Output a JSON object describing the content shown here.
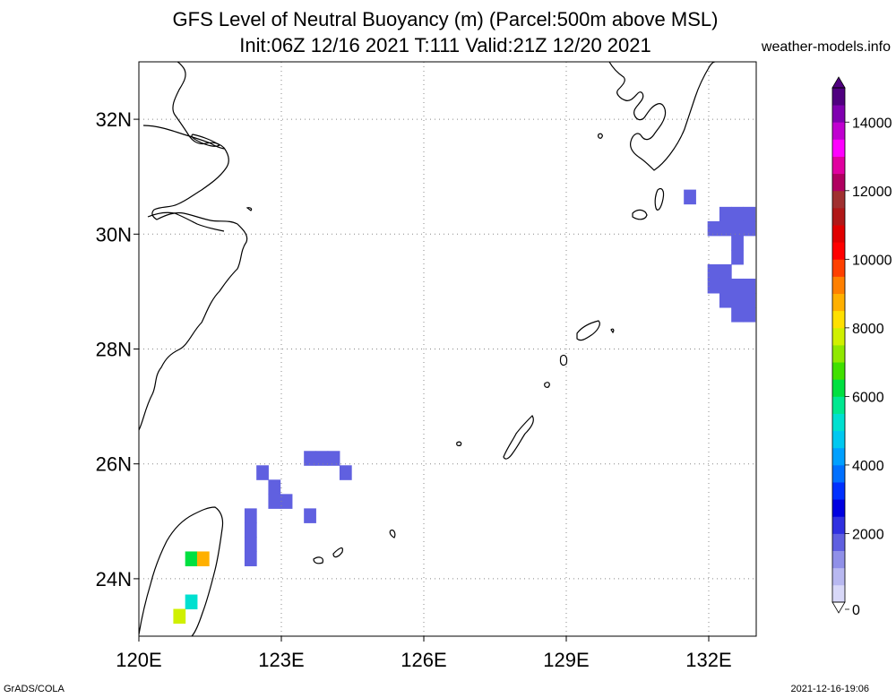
{
  "title": {
    "line1": "GFS Level of Neutral Buoyancy (m) (Parcel:500m above MSL)",
    "line2": "Init:06Z 12/16 2021 T:111 Valid:21Z 12/20 2021"
  },
  "site": "weather-models.info",
  "credits": {
    "left": "GrADS/COLA",
    "right": "2021-12-16-19:06"
  },
  "map": {
    "lon_range": [
      120,
      133
    ],
    "lat_range": [
      23,
      33
    ],
    "lat_ticks": [
      {
        "value": 24,
        "label": "24N"
      },
      {
        "value": 26,
        "label": "26N"
      },
      {
        "value": 28,
        "label": "28N"
      },
      {
        "value": 30,
        "label": "30N"
      },
      {
        "value": 32,
        "label": "32N"
      }
    ],
    "lon_ticks": [
      {
        "value": 120,
        "label": "120E"
      },
      {
        "value": 123,
        "label": "123E"
      },
      {
        "value": 126,
        "label": "126E"
      },
      {
        "value": 129,
        "label": "129E"
      },
      {
        "value": 132,
        "label": "132E"
      }
    ],
    "grid": true,
    "colors": {
      "coast": "#000000",
      "grid": "#888888"
    }
  },
  "colorbar": {
    "min": 0,
    "max": 15000,
    "labels": [
      "0",
      "2000",
      "4000",
      "6000",
      "8000",
      "10000",
      "12000",
      "14000"
    ],
    "label_values": [
      0,
      2000,
      4000,
      6000,
      8000,
      10000,
      12000,
      14000
    ],
    "colors": [
      "#d8d8f8",
      "#b8b8f0",
      "#9090e8",
      "#6060e0",
      "#3030e0",
      "#0000e0",
      "#0030ff",
      "#0070ff",
      "#00a0ff",
      "#00c8f0",
      "#00e0d0",
      "#00e890",
      "#00e040",
      "#40e000",
      "#90e800",
      "#d0f000",
      "#ffe000",
      "#ffb000",
      "#ff8000",
      "#ff4000",
      "#ff0000",
      "#e00000",
      "#b01818",
      "#a03030",
      "#b00060",
      "#e000a0",
      "#ff00ff",
      "#c000d0",
      "#8000b0",
      "#500080"
    ]
  },
  "cells": [
    {
      "lon": 131.6,
      "lat": 30.65,
      "value": 1900
    },
    {
      "lon": 132.1,
      "lat": 30.1,
      "value": 1900
    },
    {
      "lon": 132.35,
      "lat": 30.1,
      "value": 1900
    },
    {
      "lon": 132.35,
      "lat": 30.35,
      "value": 1900
    },
    {
      "lon": 132.6,
      "lat": 30.35,
      "value": 1900
    },
    {
      "lon": 132.85,
      "lat": 30.35,
      "value": 1900
    },
    {
      "lon": 132.6,
      "lat": 30.1,
      "value": 1900
    },
    {
      "lon": 132.85,
      "lat": 30.1,
      "value": 1900
    },
    {
      "lon": 132.6,
      "lat": 29.85,
      "value": 1900
    },
    {
      "lon": 132.6,
      "lat": 29.6,
      "value": 1900
    },
    {
      "lon": 132.1,
      "lat": 29.35,
      "value": 1900
    },
    {
      "lon": 132.35,
      "lat": 29.35,
      "value": 1900
    },
    {
      "lon": 132.1,
      "lat": 29.1,
      "value": 1900
    },
    {
      "lon": 132.35,
      "lat": 29.1,
      "value": 1900
    },
    {
      "lon": 132.6,
      "lat": 29.1,
      "value": 1900
    },
    {
      "lon": 132.85,
      "lat": 29.1,
      "value": 1900
    },
    {
      "lon": 132.6,
      "lat": 28.85,
      "value": 1700
    },
    {
      "lon": 132.85,
      "lat": 28.85,
      "value": 1900
    },
    {
      "lon": 132.35,
      "lat": 28.85,
      "value": 1900
    },
    {
      "lon": 132.6,
      "lat": 28.6,
      "value": 1900
    },
    {
      "lon": 132.85,
      "lat": 28.6,
      "value": 1900
    },
    {
      "lon": 123.6,
      "lat": 26.1,
      "value": 1800
    },
    {
      "lon": 123.85,
      "lat": 26.1,
      "value": 1700
    },
    {
      "lon": 124.1,
      "lat": 26.1,
      "value": 1800
    },
    {
      "lon": 124.35,
      "lat": 25.85,
      "value": 1700
    },
    {
      "lon": 122.6,
      "lat": 25.85,
      "value": 1700
    },
    {
      "lon": 122.85,
      "lat": 25.6,
      "value": 1700
    },
    {
      "lon": 122.85,
      "lat": 25.35,
      "value": 1700
    },
    {
      "lon": 123.1,
      "lat": 25.35,
      "value": 1700
    },
    {
      "lon": 123.6,
      "lat": 25.1,
      "value": 1600
    },
    {
      "lon": 122.35,
      "lat": 25.1,
      "value": 1800
    },
    {
      "lon": 122.35,
      "lat": 24.85,
      "value": 1600
    },
    {
      "lon": 122.35,
      "lat": 24.6,
      "value": 1600
    },
    {
      "lon": 122.35,
      "lat": 24.35,
      "value": 1800
    },
    {
      "lon": 121.1,
      "lat": 24.35,
      "value": 6000
    },
    {
      "lon": 121.35,
      "lat": 24.35,
      "value": 8500
    },
    {
      "lon": 121.1,
      "lat": 23.6,
      "value": 5000
    },
    {
      "lon": 120.85,
      "lat": 23.35,
      "value": 7500
    }
  ]
}
